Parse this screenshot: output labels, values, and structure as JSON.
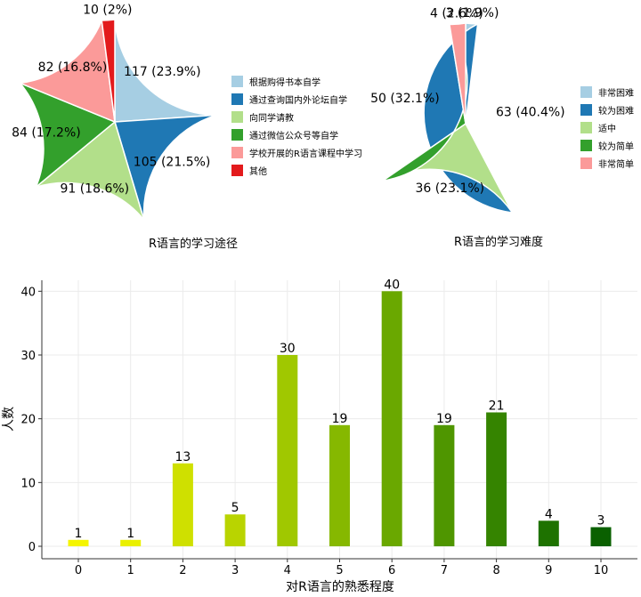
{
  "chart_data": [
    {
      "type": "pie",
      "title": "R语言的学习途径",
      "legend_position": "right",
      "categories": [
        "根据购得书本自学",
        "通过查询国内外论坛自学",
        "向同学请教",
        "通过微信公众号等自学",
        "学校开展的R语言课程中学习",
        "其他"
      ],
      "values": [
        117,
        105,
        91,
        84,
        82,
        10
      ],
      "labels": [
        "117 (23.9%)",
        "105 (21.5%)",
        "91 (18.6%)",
        "84 (17.2%)",
        "82 (16.8%)",
        "10 (2%)"
      ],
      "colors": [
        "#a6cee3",
        "#1f78b4",
        "#b2df8a",
        "#33a02c",
        "#fb9a99",
        "#e31a1c"
      ]
    },
    {
      "type": "pie",
      "title": "R语言的学习难度",
      "legend_position": "right",
      "categories": [
        "非常困难",
        "较为困难",
        "适中",
        "较为简单",
        "非常简单"
      ],
      "values": [
        3,
        63,
        36,
        50,
        4
      ],
      "labels": [
        "3 (1.9%)",
        "63 (40.4%)",
        "36 (23.1%)",
        "50 (32.1%)",
        "4 (2.6%)"
      ],
      "colors": [
        "#a6cee3",
        "#1f78b4",
        "#b2df8a",
        "#33a02c",
        "#fb9a99"
      ]
    },
    {
      "type": "bar",
      "xlabel": "对R语言的熟悉程度",
      "ylabel": "人数",
      "categories": [
        "0",
        "1",
        "2",
        "3",
        "4",
        "5",
        "6",
        "7",
        "8",
        "9",
        "10"
      ],
      "values": [
        1,
        1,
        13,
        5,
        30,
        19,
        40,
        19,
        21,
        4,
        3
      ],
      "colors": [
        "#f5f500",
        "#eaf000",
        "#cfe000",
        "#b9d400",
        "#a0c800",
        "#86b800",
        "#6aa800",
        "#4f9600",
        "#358400",
        "#1e7200",
        "#0a6000"
      ],
      "ylim": [
        0,
        42
      ],
      "yticks": [
        0,
        10,
        20,
        30,
        40
      ],
      "grid": true
    }
  ]
}
